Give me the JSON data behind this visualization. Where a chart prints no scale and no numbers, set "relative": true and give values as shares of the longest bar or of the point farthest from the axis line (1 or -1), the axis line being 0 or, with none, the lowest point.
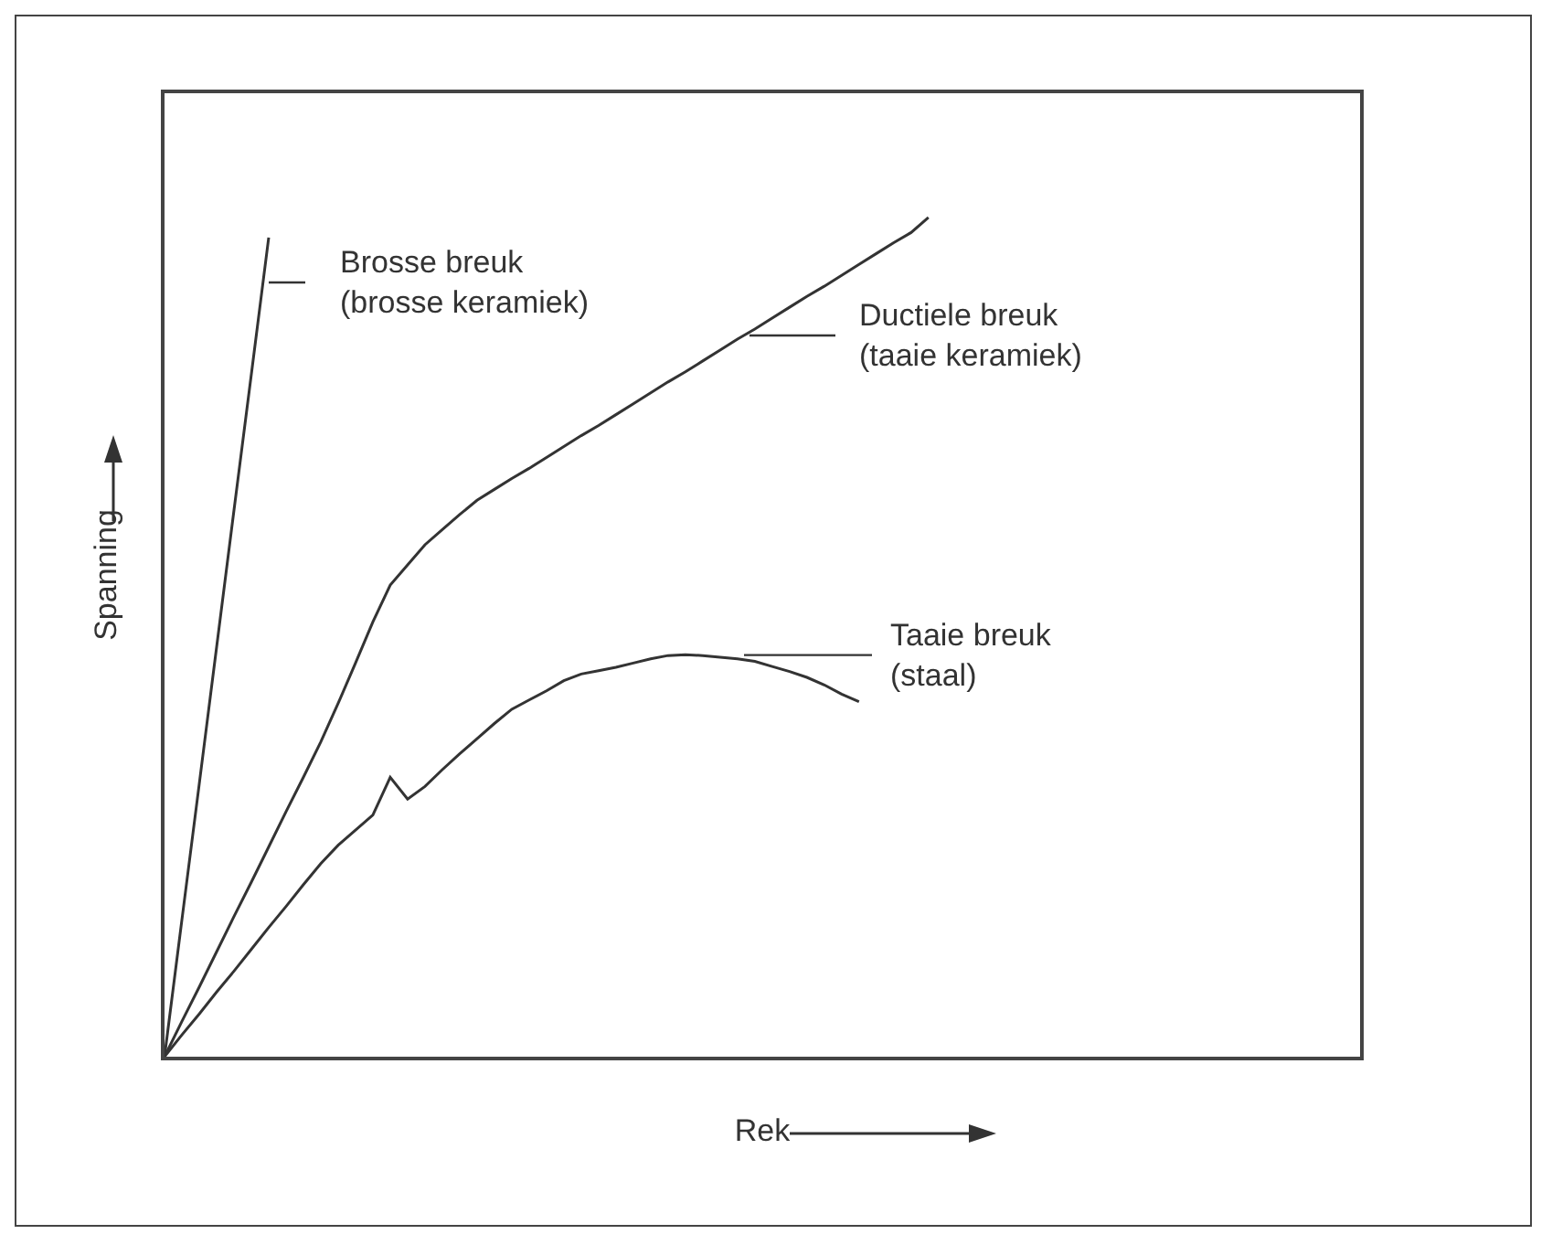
{
  "chart_data": {
    "type": "line",
    "relative": true,
    "xlabel": "Rek",
    "ylabel": "Spanning",
    "grid": false,
    "marker": "none",
    "line_style": "solid",
    "categories": [
      null,
      null,
      null,
      null,
      null,
      null,
      null,
      null,
      null,
      null,
      null,
      null,
      null,
      null,
      null,
      null,
      null,
      null,
      null,
      null,
      null,
      null,
      null,
      null,
      null,
      null,
      null,
      null,
      null,
      null,
      null,
      null,
      null,
      null,
      null,
      null,
      null,
      null,
      null,
      null,
      null,
      null,
      null,
      null,
      null
    ],
    "series": [
      {
        "color": "#333333",
        "values": [
          0,
          0.163,
          0.325,
          0.488,
          0.651,
          0.813,
          0.976,
          null,
          null,
          null,
          null,
          null,
          null,
          null,
          null,
          null,
          null,
          null,
          null,
          null,
          null,
          null,
          null,
          null,
          null,
          null,
          null,
          null,
          null,
          null,
          null,
          null,
          null,
          null,
          null,
          null,
          null,
          null,
          null,
          null,
          null,
          null,
          null,
          null,
          null
        ]
      },
      {
        "color": "#333333",
        "values": [
          0,
          0.042,
          0.083,
          0.125,
          0.167,
          0.208,
          0.25,
          0.292,
          0.333,
          0.375,
          0.421,
          0.469,
          0.518,
          0.562,
          0.586,
          0.61,
          0.628,
          0.646,
          0.663,
          0.676,
          0.689,
          0.701,
          0.714,
          0.727,
          0.74,
          0.752,
          0.765,
          0.778,
          0.791,
          0.804,
          0.816,
          0.829,
          0.842,
          0.855,
          0.867,
          0.88,
          0.893,
          0.906,
          0.918,
          0.931,
          0.944,
          0.957,
          0.97,
          0.982,
          1.0
        ]
      },
      {
        "color": "#333333",
        "values": [
          0,
          0.026,
          0.051,
          0.077,
          0.102,
          0.128,
          0.154,
          0.179,
          0.205,
          0.23,
          0.252,
          0.27,
          0.288,
          0.333,
          0.307,
          0.322,
          0.342,
          0.361,
          0.379,
          0.397,
          0.414,
          0.425,
          0.436,
          0.448,
          0.456,
          0.46,
          0.464,
          0.469,
          0.474,
          0.478,
          0.479,
          0.478,
          0.476,
          0.474,
          0.471,
          0.465,
          0.459,
          0.452,
          0.443,
          0.432,
          0.423,
          null,
          null,
          null,
          null
        ]
      }
    ],
    "annotations": [
      "Brosse breuk\n(brosse keramiek)",
      "Ductiele breuk\n(taaie keramiek)",
      "Taaie breuk\n(staal)"
    ]
  }
}
